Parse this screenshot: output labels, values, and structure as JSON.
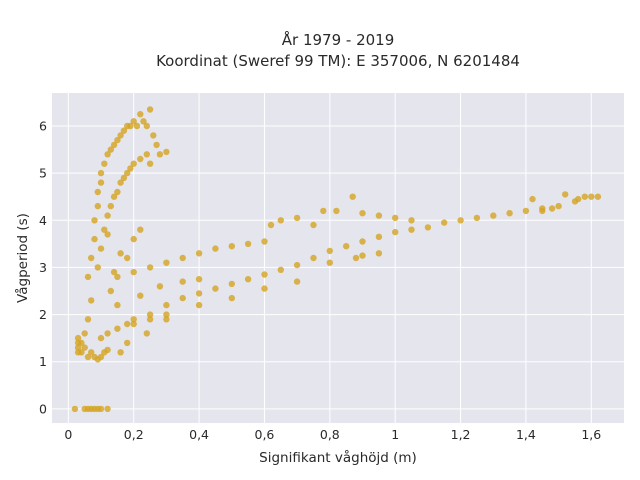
{
  "chart_data": {
    "type": "scatter",
    "title_line1": "År 1979 - 2019",
    "title_line2": "Koordinat (Sweref 99 TM): E 357006, N 6201484",
    "xlabel": "Signifikant våghöjd (m)",
    "ylabel": "Vågperiod (s)",
    "xlim": [
      -0.05,
      1.7
    ],
    "ylim": [
      -0.3,
      6.7
    ],
    "x_ticks": [
      0,
      0.2,
      0.4,
      0.6,
      0.8,
      1,
      1.2,
      1.4,
      1.6
    ],
    "x_tick_labels": [
      "0",
      "0,2",
      "0,4",
      "0,6",
      "0,8",
      "1",
      "1,2",
      "1,4",
      "1,6"
    ],
    "y_ticks": [
      0,
      1,
      2,
      3,
      4,
      5,
      6
    ],
    "y_tick_labels": [
      "0",
      "1",
      "2",
      "3",
      "4",
      "5",
      "6"
    ],
    "grid": true,
    "marker_color": "#D4A421",
    "background_color": "#E5E5EE",
    "series": [
      {
        "values": [
          [
            0.02,
            0.0
          ],
          [
            0.05,
            0.0
          ],
          [
            0.06,
            0.0
          ],
          [
            0.07,
            0.0
          ],
          [
            0.08,
            0.0
          ],
          [
            0.09,
            0.0
          ],
          [
            0.1,
            0.0
          ],
          [
            0.12,
            0.0
          ],
          [
            0.03,
            1.2
          ],
          [
            0.03,
            1.3
          ],
          [
            0.03,
            1.4
          ],
          [
            0.03,
            1.5
          ],
          [
            0.04,
            1.2
          ],
          [
            0.04,
            1.4
          ],
          [
            0.05,
            1.3
          ],
          [
            0.05,
            1.6
          ],
          [
            0.06,
            1.1
          ],
          [
            0.07,
            1.2
          ],
          [
            0.08,
            1.1
          ],
          [
            0.09,
            1.05
          ],
          [
            0.1,
            1.1
          ],
          [
            0.11,
            1.2
          ],
          [
            0.12,
            1.25
          ],
          [
            0.06,
            1.9
          ],
          [
            0.07,
            2.3
          ],
          [
            0.06,
            2.8
          ],
          [
            0.07,
            3.2
          ],
          [
            0.08,
            3.6
          ],
          [
            0.08,
            4.0
          ],
          [
            0.09,
            4.3
          ],
          [
            0.09,
            4.6
          ],
          [
            0.1,
            4.8
          ],
          [
            0.1,
            5.0
          ],
          [
            0.11,
            5.2
          ],
          [
            0.12,
            5.4
          ],
          [
            0.13,
            5.5
          ],
          [
            0.14,
            5.6
          ],
          [
            0.15,
            5.7
          ],
          [
            0.16,
            5.8
          ],
          [
            0.17,
            5.9
          ],
          [
            0.18,
            6.0
          ],
          [
            0.19,
            6.0
          ],
          [
            0.2,
            6.1
          ],
          [
            0.21,
            6.0
          ],
          [
            0.22,
            6.25
          ],
          [
            0.23,
            6.1
          ],
          [
            0.25,
            6.35
          ],
          [
            0.24,
            6.0
          ],
          [
            0.26,
            5.8
          ],
          [
            0.27,
            5.6
          ],
          [
            0.3,
            5.45
          ],
          [
            0.28,
            5.4
          ],
          [
            0.25,
            5.2
          ],
          [
            0.09,
            3.0
          ],
          [
            0.1,
            3.4
          ],
          [
            0.11,
            3.8
          ],
          [
            0.12,
            4.1
          ],
          [
            0.13,
            4.3
          ],
          [
            0.14,
            4.5
          ],
          [
            0.15,
            4.6
          ],
          [
            0.16,
            4.8
          ],
          [
            0.17,
            4.9
          ],
          [
            0.18,
            5.0
          ],
          [
            0.19,
            5.1
          ],
          [
            0.2,
            5.2
          ],
          [
            0.22,
            5.3
          ],
          [
            0.24,
            5.4
          ],
          [
            0.1,
            1.5
          ],
          [
            0.12,
            1.6
          ],
          [
            0.15,
            1.7
          ],
          [
            0.18,
            1.8
          ],
          [
            0.2,
            1.9
          ],
          [
            0.25,
            2.0
          ],
          [
            0.3,
            2.2
          ],
          [
            0.35,
            2.35
          ],
          [
            0.4,
            2.45
          ],
          [
            0.45,
            2.55
          ],
          [
            0.5,
            2.65
          ],
          [
            0.55,
            2.75
          ],
          [
            0.6,
            2.85
          ],
          [
            0.65,
            2.95
          ],
          [
            0.7,
            3.05
          ],
          [
            0.75,
            3.2
          ],
          [
            0.8,
            3.35
          ],
          [
            0.85,
            3.45
          ],
          [
            0.9,
            3.55
          ],
          [
            0.95,
            3.65
          ],
          [
            1.0,
            3.75
          ],
          [
            1.05,
            3.8
          ],
          [
            1.1,
            3.85
          ],
          [
            1.15,
            3.95
          ],
          [
            1.2,
            4.0
          ],
          [
            1.25,
            4.05
          ],
          [
            1.3,
            4.1
          ],
          [
            1.35,
            4.15
          ],
          [
            1.4,
            4.2
          ],
          [
            1.45,
            4.25
          ],
          [
            1.5,
            4.3
          ],
          [
            1.55,
            4.4
          ],
          [
            1.58,
            4.5
          ],
          [
            1.6,
            4.5
          ],
          [
            1.62,
            4.5
          ],
          [
            1.52,
            4.55
          ],
          [
            1.56,
            4.45
          ],
          [
            1.42,
            4.45
          ],
          [
            1.48,
            4.25
          ],
          [
            1.45,
            4.2
          ],
          [
            0.15,
            2.8
          ],
          [
            0.2,
            2.9
          ],
          [
            0.25,
            3.0
          ],
          [
            0.3,
            3.1
          ],
          [
            0.35,
            3.2
          ],
          [
            0.4,
            3.3
          ],
          [
            0.45,
            3.4
          ],
          [
            0.5,
            3.45
          ],
          [
            0.55,
            3.5
          ],
          [
            0.6,
            3.55
          ],
          [
            0.62,
            3.9
          ],
          [
            0.65,
            4.0
          ],
          [
            0.7,
            4.05
          ],
          [
            0.75,
            3.9
          ],
          [
            0.78,
            4.2
          ],
          [
            0.82,
            4.2
          ],
          [
            0.87,
            4.5
          ],
          [
            0.9,
            4.15
          ],
          [
            0.95,
            4.1
          ],
          [
            1.0,
            4.05
          ],
          [
            1.05,
            4.0
          ],
          [
            0.2,
            1.8
          ],
          [
            0.25,
            1.9
          ],
          [
            0.3,
            2.0
          ],
          [
            0.22,
            2.4
          ],
          [
            0.28,
            2.6
          ],
          [
            0.35,
            2.7
          ],
          [
            0.4,
            2.75
          ],
          [
            0.18,
            3.2
          ],
          [
            0.2,
            3.6
          ],
          [
            0.22,
            3.8
          ],
          [
            0.12,
            3.7
          ],
          [
            0.16,
            3.3
          ],
          [
            0.14,
            2.9
          ],
          [
            0.13,
            2.5
          ],
          [
            0.15,
            2.2
          ],
          [
            0.88,
            3.2
          ],
          [
            0.9,
            3.25
          ],
          [
            0.95,
            3.3
          ],
          [
            0.8,
            3.1
          ],
          [
            0.7,
            2.7
          ],
          [
            0.6,
            2.55
          ],
          [
            0.5,
            2.35
          ],
          [
            0.4,
            2.2
          ],
          [
            0.3,
            1.9
          ],
          [
            0.24,
            1.6
          ],
          [
            0.18,
            1.4
          ],
          [
            0.16,
            1.2
          ]
        ]
      }
    ]
  }
}
